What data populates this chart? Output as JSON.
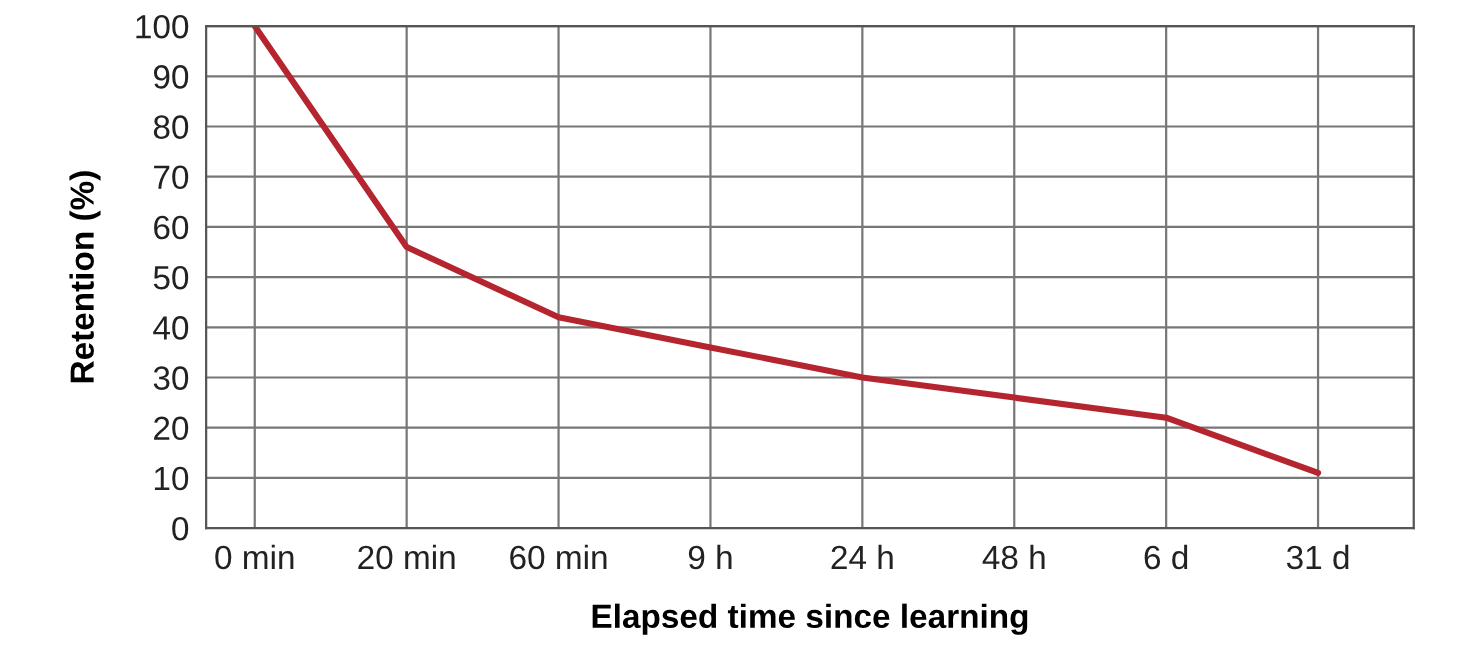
{
  "chart_data": {
    "type": "line",
    "xlabel": "Elapsed time since learning",
    "ylabel": "Retention (%)",
    "categories": [
      "0 min",
      "20 min",
      "60 min",
      "9 h",
      "24 h",
      "48 h",
      "6 d",
      "31 d"
    ],
    "series": [
      {
        "color": "#b5252f",
        "values": [
          100,
          56,
          42,
          36,
          30,
          26,
          22,
          11
        ]
      }
    ],
    "ylim": [
      0,
      100
    ],
    "yticks": [
      0,
      10,
      20,
      30,
      40,
      50,
      60,
      70,
      80,
      90,
      100
    ],
    "grid": true,
    "marker": "none",
    "line_style": "solid",
    "legend": false
  }
}
